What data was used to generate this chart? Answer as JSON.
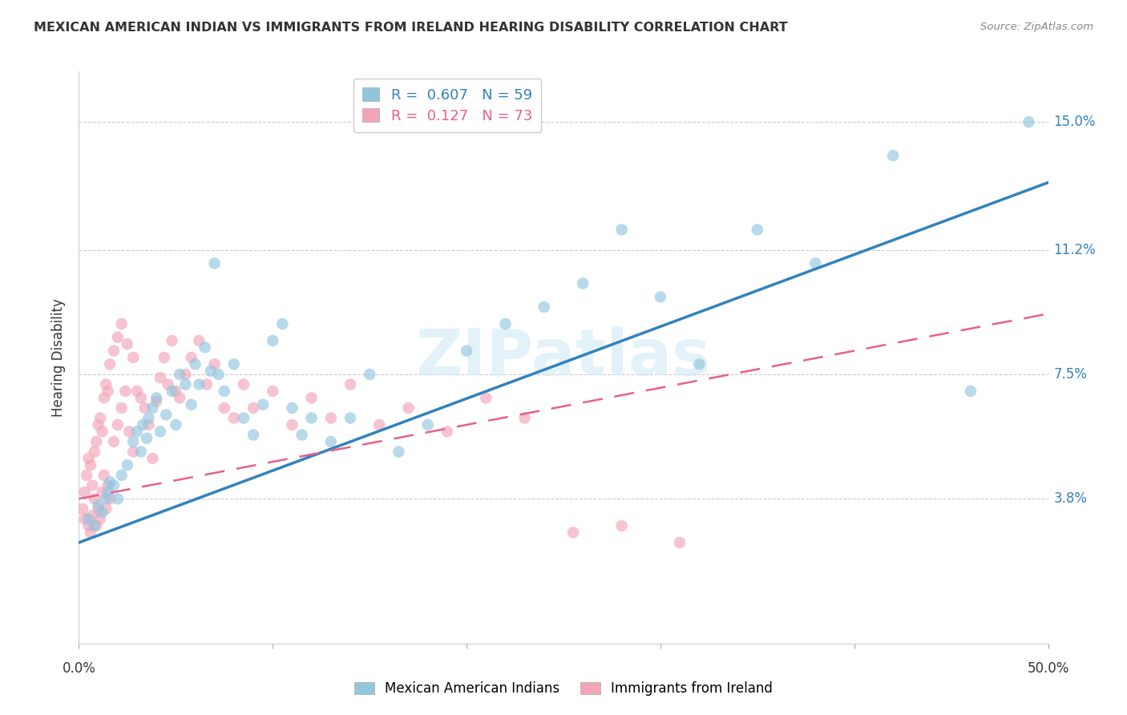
{
  "title": "MEXICAN AMERICAN INDIAN VS IMMIGRANTS FROM IRELAND HEARING DISABILITY CORRELATION CHART",
  "source": "Source: ZipAtlas.com",
  "ylabel": "Hearing Disability",
  "ytick_labels": [
    "3.8%",
    "7.5%",
    "11.2%",
    "15.0%"
  ],
  "ytick_values": [
    0.038,
    0.075,
    0.112,
    0.15
  ],
  "xlim": [
    0.0,
    0.5
  ],
  "ylim": [
    -0.005,
    0.165
  ],
  "legend_blue_R": "0.607",
  "legend_blue_N": "59",
  "legend_pink_R": "0.127",
  "legend_pink_N": "73",
  "blue_label": "Mexican American Indians",
  "pink_label": "Immigrants from Ireland",
  "blue_color": "#92c5de",
  "pink_color": "#f4a4b8",
  "blue_line_color": "#3182bd",
  "pink_line_color": "#e8608a",
  "watermark": "ZIPatlas",
  "blue_scatter_x": [
    0.005,
    0.008,
    0.01,
    0.012,
    0.014,
    0.015,
    0.016,
    0.018,
    0.02,
    0.022,
    0.025,
    0.028,
    0.03,
    0.032,
    0.033,
    0.035,
    0.036,
    0.038,
    0.04,
    0.042,
    0.045,
    0.048,
    0.05,
    0.052,
    0.055,
    0.058,
    0.06,
    0.062,
    0.065,
    0.068,
    0.07,
    0.072,
    0.075,
    0.08,
    0.085,
    0.09,
    0.095,
    0.1,
    0.105,
    0.11,
    0.115,
    0.12,
    0.13,
    0.14,
    0.15,
    0.165,
    0.18,
    0.2,
    0.22,
    0.24,
    0.26,
    0.28,
    0.3,
    0.32,
    0.35,
    0.38,
    0.42,
    0.46,
    0.49
  ],
  "blue_scatter_y": [
    0.032,
    0.03,
    0.036,
    0.034,
    0.038,
    0.04,
    0.043,
    0.042,
    0.038,
    0.045,
    0.048,
    0.055,
    0.058,
    0.052,
    0.06,
    0.056,
    0.062,
    0.065,
    0.068,
    0.058,
    0.063,
    0.07,
    0.06,
    0.075,
    0.072,
    0.066,
    0.078,
    0.072,
    0.083,
    0.076,
    0.108,
    0.075,
    0.07,
    0.078,
    0.062,
    0.057,
    0.066,
    0.085,
    0.09,
    0.065,
    0.057,
    0.062,
    0.055,
    0.062,
    0.075,
    0.052,
    0.06,
    0.082,
    0.09,
    0.095,
    0.102,
    0.118,
    0.098,
    0.078,
    0.118,
    0.108,
    0.14,
    0.07,
    0.15
  ],
  "pink_scatter_x": [
    0.002,
    0.003,
    0.003,
    0.004,
    0.005,
    0.005,
    0.006,
    0.006,
    0.007,
    0.007,
    0.008,
    0.008,
    0.009,
    0.009,
    0.01,
    0.01,
    0.011,
    0.011,
    0.012,
    0.012,
    0.013,
    0.013,
    0.014,
    0.014,
    0.015,
    0.015,
    0.016,
    0.016,
    0.018,
    0.018,
    0.02,
    0.02,
    0.022,
    0.022,
    0.024,
    0.025,
    0.026,
    0.028,
    0.028,
    0.03,
    0.032,
    0.034,
    0.036,
    0.038,
    0.04,
    0.042,
    0.044,
    0.046,
    0.048,
    0.05,
    0.052,
    0.055,
    0.058,
    0.062,
    0.066,
    0.07,
    0.075,
    0.08,
    0.085,
    0.09,
    0.1,
    0.11,
    0.12,
    0.13,
    0.14,
    0.155,
    0.17,
    0.19,
    0.21,
    0.23,
    0.255,
    0.28,
    0.31
  ],
  "pink_scatter_y": [
    0.035,
    0.04,
    0.032,
    0.045,
    0.03,
    0.05,
    0.028,
    0.048,
    0.033,
    0.042,
    0.038,
    0.052,
    0.03,
    0.055,
    0.035,
    0.06,
    0.032,
    0.062,
    0.04,
    0.058,
    0.045,
    0.068,
    0.035,
    0.072,
    0.042,
    0.07,
    0.038,
    0.078,
    0.055,
    0.082,
    0.06,
    0.086,
    0.065,
    0.09,
    0.07,
    0.084,
    0.058,
    0.08,
    0.052,
    0.07,
    0.068,
    0.065,
    0.06,
    0.05,
    0.067,
    0.074,
    0.08,
    0.072,
    0.085,
    0.07,
    0.068,
    0.075,
    0.08,
    0.085,
    0.072,
    0.078,
    0.065,
    0.062,
    0.072,
    0.065,
    0.07,
    0.06,
    0.068,
    0.062,
    0.072,
    0.06,
    0.065,
    0.058,
    0.068,
    0.062,
    0.028,
    0.03,
    0.025
  ],
  "blue_trendline_x": [
    0.0,
    0.5
  ],
  "blue_trendline_y": [
    0.025,
    0.132
  ],
  "pink_trendline_x": [
    0.0,
    0.5
  ],
  "pink_trendline_y": [
    0.038,
    0.093
  ]
}
